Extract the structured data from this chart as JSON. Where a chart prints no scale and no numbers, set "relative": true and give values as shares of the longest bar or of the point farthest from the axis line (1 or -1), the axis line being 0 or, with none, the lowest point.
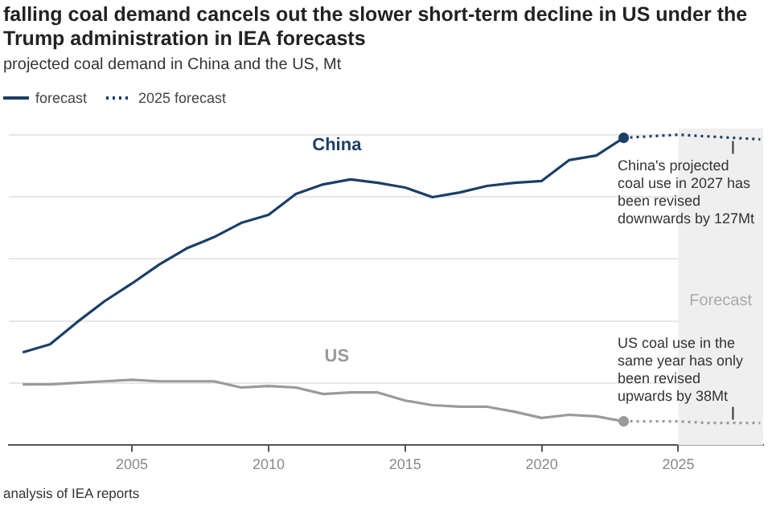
{
  "chart_data": {
    "type": "line",
    "title": "falling coal demand cancels out the slower short-term decline in US under the Trump administration in IEA forecasts",
    "subtitle": "projected coal demand in China and the US, Mt",
    "relative": true,
    "grid": "y",
    "legend": "top left",
    "tick_labels": "x",
    "xlim": [
      2000.5,
      2028.1
    ],
    "xticks": [
      2005,
      2010,
      2015,
      2020,
      2025
    ],
    "series": [
      {
        "name": "China",
        "color": "#1b3f66",
        "line_style": "solid",
        "x": [
          2001,
          2002,
          2003,
          2004,
          2005,
          2006,
          2007,
          2008,
          2009,
          2010,
          2011,
          2012,
          2013,
          2014,
          2015,
          2016,
          2017,
          2018,
          2019,
          2020,
          2021,
          2022,
          2023
        ],
        "values": [
          0.299,
          0.325,
          0.397,
          0.464,
          0.521,
          0.582,
          0.634,
          0.67,
          0.716,
          0.742,
          0.809,
          0.84,
          0.856,
          0.845,
          0.83,
          0.799,
          0.814,
          0.835,
          0.845,
          0.851,
          0.918,
          0.933,
          0.99
        ]
      },
      {
        "name": "US",
        "color": "#9a9a9a",
        "line_style": "solid",
        "x": [
          2001,
          2002,
          2003,
          2004,
          2005,
          2006,
          2007,
          2008,
          2009,
          2010,
          2011,
          2012,
          2013,
          2014,
          2015,
          2016,
          2017,
          2018,
          2019,
          2020,
          2021,
          2022,
          2023
        ],
        "values": [
          0.196,
          0.196,
          0.201,
          0.206,
          0.211,
          0.206,
          0.206,
          0.206,
          0.186,
          0.191,
          0.186,
          0.165,
          0.17,
          0.17,
          0.144,
          0.129,
          0.124,
          0.124,
          0.108,
          0.088,
          0.098,
          0.093,
          0.077
        ]
      },
      {
        "name": "2025 forecast",
        "color": "#1b3f66",
        "line_style": "dotted",
        "x": [
          2023,
          2024,
          2025,
          2026,
          2027,
          2028
        ],
        "values": [
          0.99,
          0.995,
          1.0,
          0.995,
          0.99,
          0.985
        ]
      },
      {
        "color": "#9a9a9a",
        "line_style": "dotted",
        "x": [
          2023,
          2024,
          2025,
          2026,
          2027,
          2028
        ],
        "values": [
          0.077,
          0.077,
          0.077,
          0.072,
          0.072,
          0.072
        ]
      }
    ],
    "bands": [
      {
        "axis": "x",
        "from": 2025,
        "to": 2028.1,
        "label": "Forecast",
        "color": "#efefef"
      }
    ],
    "annotations": [
      {
        "text": "China's projected coal use in 2027 has been revised downwards by 127Mt",
        "x": 2027,
        "y": 0.99
      },
      {
        "text": "US coal use in the same year has only been revised upwards by 38Mt",
        "x": 2027,
        "y": 0.072
      },
      "forecast",
      "analysis of IEA reports"
    ]
  }
}
